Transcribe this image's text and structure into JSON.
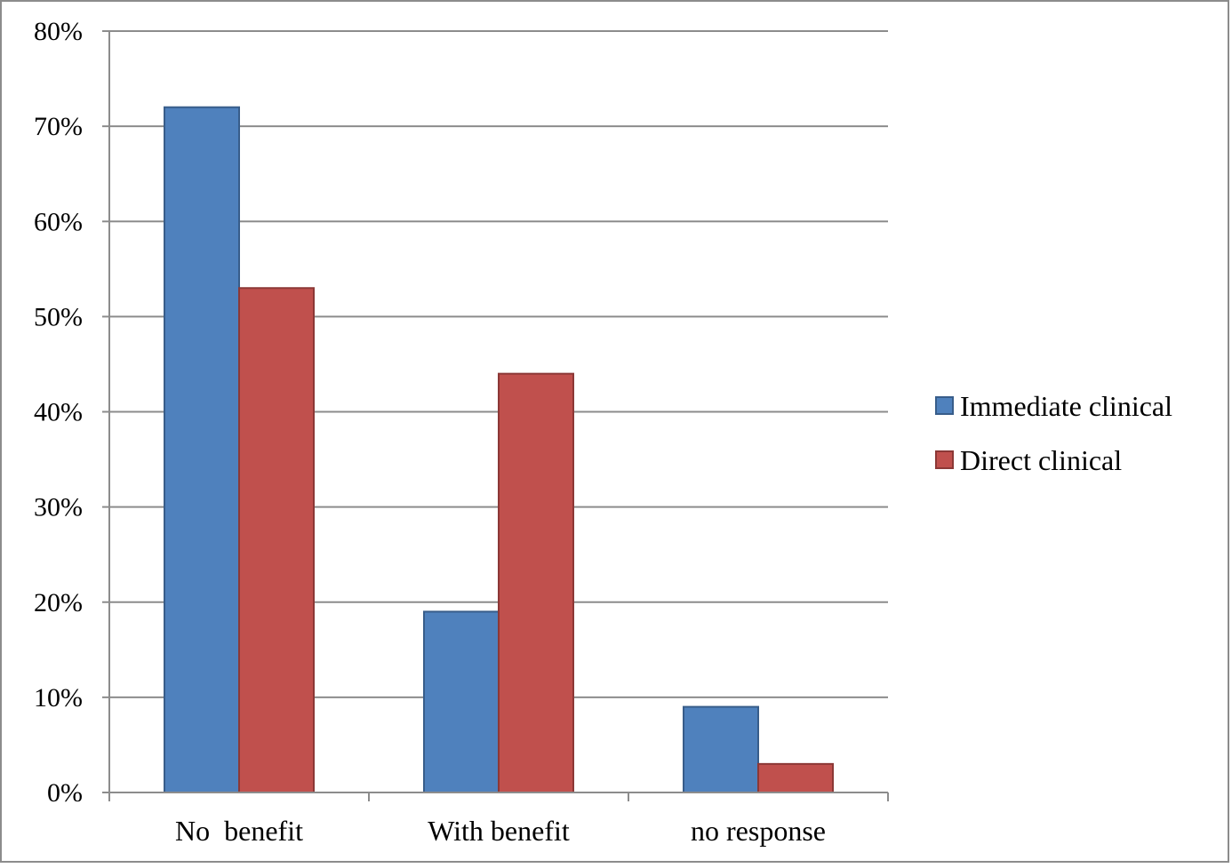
{
  "chart_data": {
    "type": "bar",
    "title": "",
    "xlabel": "",
    "ylabel": "",
    "categories": [
      "No  benefit",
      "With benefit",
      "no response"
    ],
    "series": [
      {
        "name": "Immediate clinical",
        "color": "#4f81bd",
        "values": [
          72,
          19,
          9
        ]
      },
      {
        "name": "Direct clinical",
        "color": "#c0504d",
        "values": [
          53,
          44,
          3
        ]
      }
    ],
    "ylim": [
      0,
      80
    ],
    "yticks": [
      0,
      10,
      20,
      30,
      40,
      50,
      60,
      70,
      80
    ],
    "ytick_labels": [
      "0%",
      "10%",
      "20%",
      "30%",
      "40%",
      "50%",
      "60%",
      "70%",
      "80%"
    ],
    "grid": true,
    "legend_position": "right"
  }
}
